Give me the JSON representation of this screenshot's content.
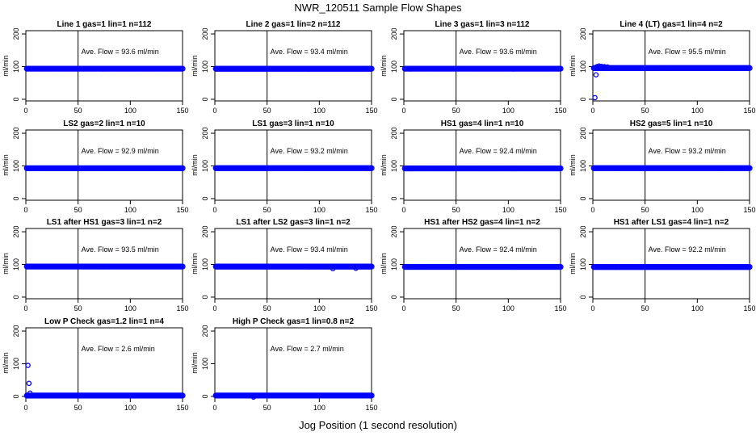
{
  "page": {
    "title": "NWR_120511  Sample Flow Shapes",
    "x_caption": "Jog Position (1 second resolution)"
  },
  "chart_data": [
    {
      "type": "scatter",
      "title": "Line 1 gas=1 lin=1 n=112",
      "ylabel": "ml/min",
      "xlim": [
        0,
        150
      ],
      "ylim": [
        -5,
        210
      ],
      "xticks": [
        0,
        50,
        100,
        150
      ],
      "yticks": [
        0,
        100,
        200
      ],
      "vline": 50,
      "hline": 93.6,
      "annotation": "Ave. Flow =  93.6  ml/min",
      "color": "#0000ff",
      "points": []
    },
    {
      "type": "scatter",
      "title": "Line 2 gas=1 lin=2 n=112",
      "ylabel": "ml/min",
      "xlim": [
        0,
        150
      ],
      "ylim": [
        -5,
        210
      ],
      "xticks": [
        0,
        50,
        100,
        150
      ],
      "yticks": [
        0,
        100,
        200
      ],
      "vline": 50,
      "hline": 93.4,
      "annotation": "Ave. Flow =  93.4  ml/min",
      "color": "#0000ff",
      "points": []
    },
    {
      "type": "scatter",
      "title": "Line 3 gas=1 lin=3 n=112",
      "ylabel": "ml/min",
      "xlim": [
        0,
        150
      ],
      "ylim": [
        -5,
        210
      ],
      "xticks": [
        0,
        50,
        100,
        150
      ],
      "yticks": [
        0,
        100,
        200
      ],
      "vline": 50,
      "hline": 93.6,
      "annotation": "Ave. Flow =  93.6  ml/min",
      "color": "#0000ff",
      "points": []
    },
    {
      "type": "scatter",
      "title": "Line 4 (LT) gas=1 lin=4 n=2",
      "ylabel": "ml/min",
      "xlim": [
        0,
        150
      ],
      "ylim": [
        -5,
        210
      ],
      "xticks": [
        0,
        50,
        100,
        150
      ],
      "yticks": [
        0,
        100,
        200
      ],
      "vline": 50,
      "hline": 95.5,
      "annotation": "Ave. Flow =  95.5  ml/min",
      "color": "#0000ff",
      "points": [
        [
          2,
          5
        ],
        [
          3,
          75
        ],
        [
          4,
          100
        ],
        [
          6,
          102
        ],
        [
          8,
          101
        ],
        [
          11,
          100
        ],
        [
          14,
          99
        ]
      ]
    },
    {
      "type": "scatter",
      "title": "LS2 gas=2 lin=1 n=10",
      "ylabel": "ml/min",
      "xlim": [
        0,
        150
      ],
      "ylim": [
        -5,
        210
      ],
      "xticks": [
        0,
        50,
        100,
        150
      ],
      "yticks": [
        0,
        100,
        200
      ],
      "vline": 50,
      "hline": 92.9,
      "annotation": "Ave. Flow =  92.9  ml/min",
      "color": "#0000ff",
      "points": []
    },
    {
      "type": "scatter",
      "title": "LS1 gas=3 lin=1 n=10",
      "ylabel": "ml/min",
      "xlim": [
        0,
        150
      ],
      "ylim": [
        -5,
        210
      ],
      "xticks": [
        0,
        50,
        100,
        150
      ],
      "yticks": [
        0,
        100,
        200
      ],
      "vline": 50,
      "hline": 93.2,
      "annotation": "Ave. Flow =  93.2  ml/min",
      "color": "#0000ff",
      "points": []
    },
    {
      "type": "scatter",
      "title": "HS1 gas=4 lin=1 n=10",
      "ylabel": "ml/min",
      "xlim": [
        0,
        150
      ],
      "ylim": [
        -5,
        210
      ],
      "xticks": [
        0,
        50,
        100,
        150
      ],
      "yticks": [
        0,
        100,
        200
      ],
      "vline": 50,
      "hline": 92.4,
      "annotation": "Ave. Flow =  92.4  ml/min",
      "color": "#0000ff",
      "points": []
    },
    {
      "type": "scatter",
      "title": "HS2 gas=5 lin=1 n=10",
      "ylabel": "ml/min",
      "xlim": [
        0,
        150
      ],
      "ylim": [
        -5,
        210
      ],
      "xticks": [
        0,
        50,
        100,
        150
      ],
      "yticks": [
        0,
        100,
        200
      ],
      "vline": 50,
      "hline": 93.2,
      "annotation": "Ave. Flow =  93.2  ml/min",
      "color": "#0000ff",
      "points": []
    },
    {
      "type": "scatter",
      "title": "LS1 after HS1 gas=3 lin=1 n=2",
      "ylabel": "ml/min",
      "xlim": [
        0,
        150
      ],
      "ylim": [
        -5,
        210
      ],
      "xticks": [
        0,
        50,
        100,
        150
      ],
      "yticks": [
        0,
        100,
        200
      ],
      "vline": 50,
      "hline": 93.5,
      "annotation": "Ave. Flow =  93.5  ml/min",
      "color": "#0000ff",
      "points": []
    },
    {
      "type": "scatter",
      "title": "LS1 after LS2 gas=3 lin=1 n=2",
      "ylabel": "ml/min",
      "xlim": [
        0,
        150
      ],
      "ylim": [
        -5,
        210
      ],
      "xticks": [
        0,
        50,
        100,
        150
      ],
      "yticks": [
        0,
        100,
        200
      ],
      "vline": 50,
      "hline": 93.4,
      "annotation": "Ave. Flow =  93.4  ml/min",
      "color": "#0000ff",
      "points": [
        [
          113,
          87
        ],
        [
          135,
          88
        ]
      ]
    },
    {
      "type": "scatter",
      "title": "HS1 after HS2 gas=4 lin=1 n=2",
      "ylabel": "ml/min",
      "xlim": [
        0,
        150
      ],
      "ylim": [
        -5,
        210
      ],
      "xticks": [
        0,
        50,
        100,
        150
      ],
      "yticks": [
        0,
        100,
        200
      ],
      "vline": 50,
      "hline": 92.4,
      "annotation": "Ave. Flow =  92.4  ml/min",
      "color": "#0000ff",
      "points": []
    },
    {
      "type": "scatter",
      "title": "HS1 after LS1 gas=4 lin=1 n=2",
      "ylabel": "ml/min",
      "xlim": [
        0,
        150
      ],
      "ylim": [
        -5,
        210
      ],
      "xticks": [
        0,
        50,
        100,
        150
      ],
      "yticks": [
        0,
        100,
        200
      ],
      "vline": 50,
      "hline": 92.2,
      "annotation": "Ave. Flow =  92.2  ml/min",
      "color": "#0000ff",
      "points": []
    },
    {
      "type": "scatter",
      "title": "Low P Check gas=1.2 lin=1 n=4",
      "ylabel": "ml/min",
      "xlim": [
        0,
        150
      ],
      "ylim": [
        -5,
        210
      ],
      "xticks": [
        0,
        50,
        100,
        150
      ],
      "yticks": [
        0,
        100,
        200
      ],
      "vline": 50,
      "hline": 2.6,
      "annotation": "Ave. Flow =  2.6  ml/min",
      "color": "#0000ff",
      "points": [
        [
          2,
          95
        ],
        [
          3,
          40
        ],
        [
          4,
          10
        ],
        [
          6,
          3
        ]
      ]
    },
    {
      "type": "scatter",
      "title": "High P Check gas=1 lin=0.8 n=2",
      "ylabel": "ml/min",
      "xlim": [
        0,
        150
      ],
      "ylim": [
        -5,
        210
      ],
      "xticks": [
        0,
        50,
        100,
        150
      ],
      "yticks": [
        0,
        100,
        200
      ],
      "vline": 50,
      "hline": 2.7,
      "annotation": "Ave. Flow =  2.7  ml/min",
      "color": "#0000ff",
      "points": [
        [
          37,
          -2
        ]
      ]
    }
  ]
}
